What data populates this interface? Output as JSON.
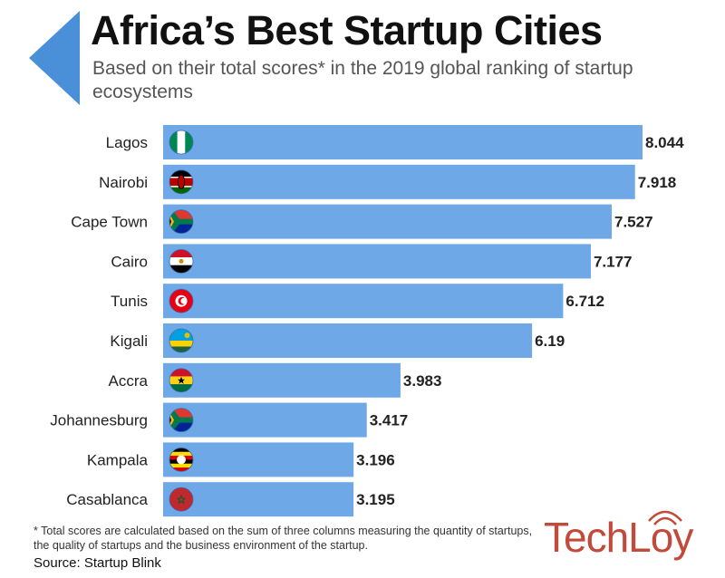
{
  "header": {
    "title": "Africa’s Best Startup Cities",
    "subtitle": "Based on their total scores* in the 2019 global ranking of startup ecosystems"
  },
  "footer": {
    "footnote": "* Total scores are calculated based on the sum of three columns measuring the quantity of startups, the quality of startups and the business environment of the startup.",
    "source": "Source: Startup Blink",
    "brand": "TechLoy"
  },
  "colors": {
    "bar": "#6fa8e6",
    "accent": "#4a90d9",
    "brand": "#c24a3a"
  },
  "chart_data": {
    "type": "bar",
    "orientation": "horizontal",
    "title": "Africa’s Best Startup Cities",
    "subtitle": "Based on their total scores* in the 2019 global ranking of startup ecosystems",
    "categories": [
      "Lagos",
      "Nairobi",
      "Cape Town",
      "Cairo",
      "Tunis",
      "Kigali",
      "Accra",
      "Johannesburg",
      "Kampala",
      "Casablanca"
    ],
    "values": [
      8.044,
      7.918,
      7.527,
      7.177,
      6.712,
      6.19,
      3.983,
      3.417,
      3.196,
      3.195
    ],
    "value_labels": [
      "8.044",
      "7.918",
      "7.527",
      "7.177",
      "6.712",
      "6.19",
      "3.983",
      "3.417",
      "3.196",
      "3.195"
    ],
    "flags": [
      "nigeria",
      "kenya",
      "south-africa",
      "egypt",
      "tunisia",
      "rwanda",
      "ghana",
      "south-africa",
      "uganda",
      "morocco"
    ],
    "xlim": [
      0,
      8.044
    ],
    "grid": false
  }
}
